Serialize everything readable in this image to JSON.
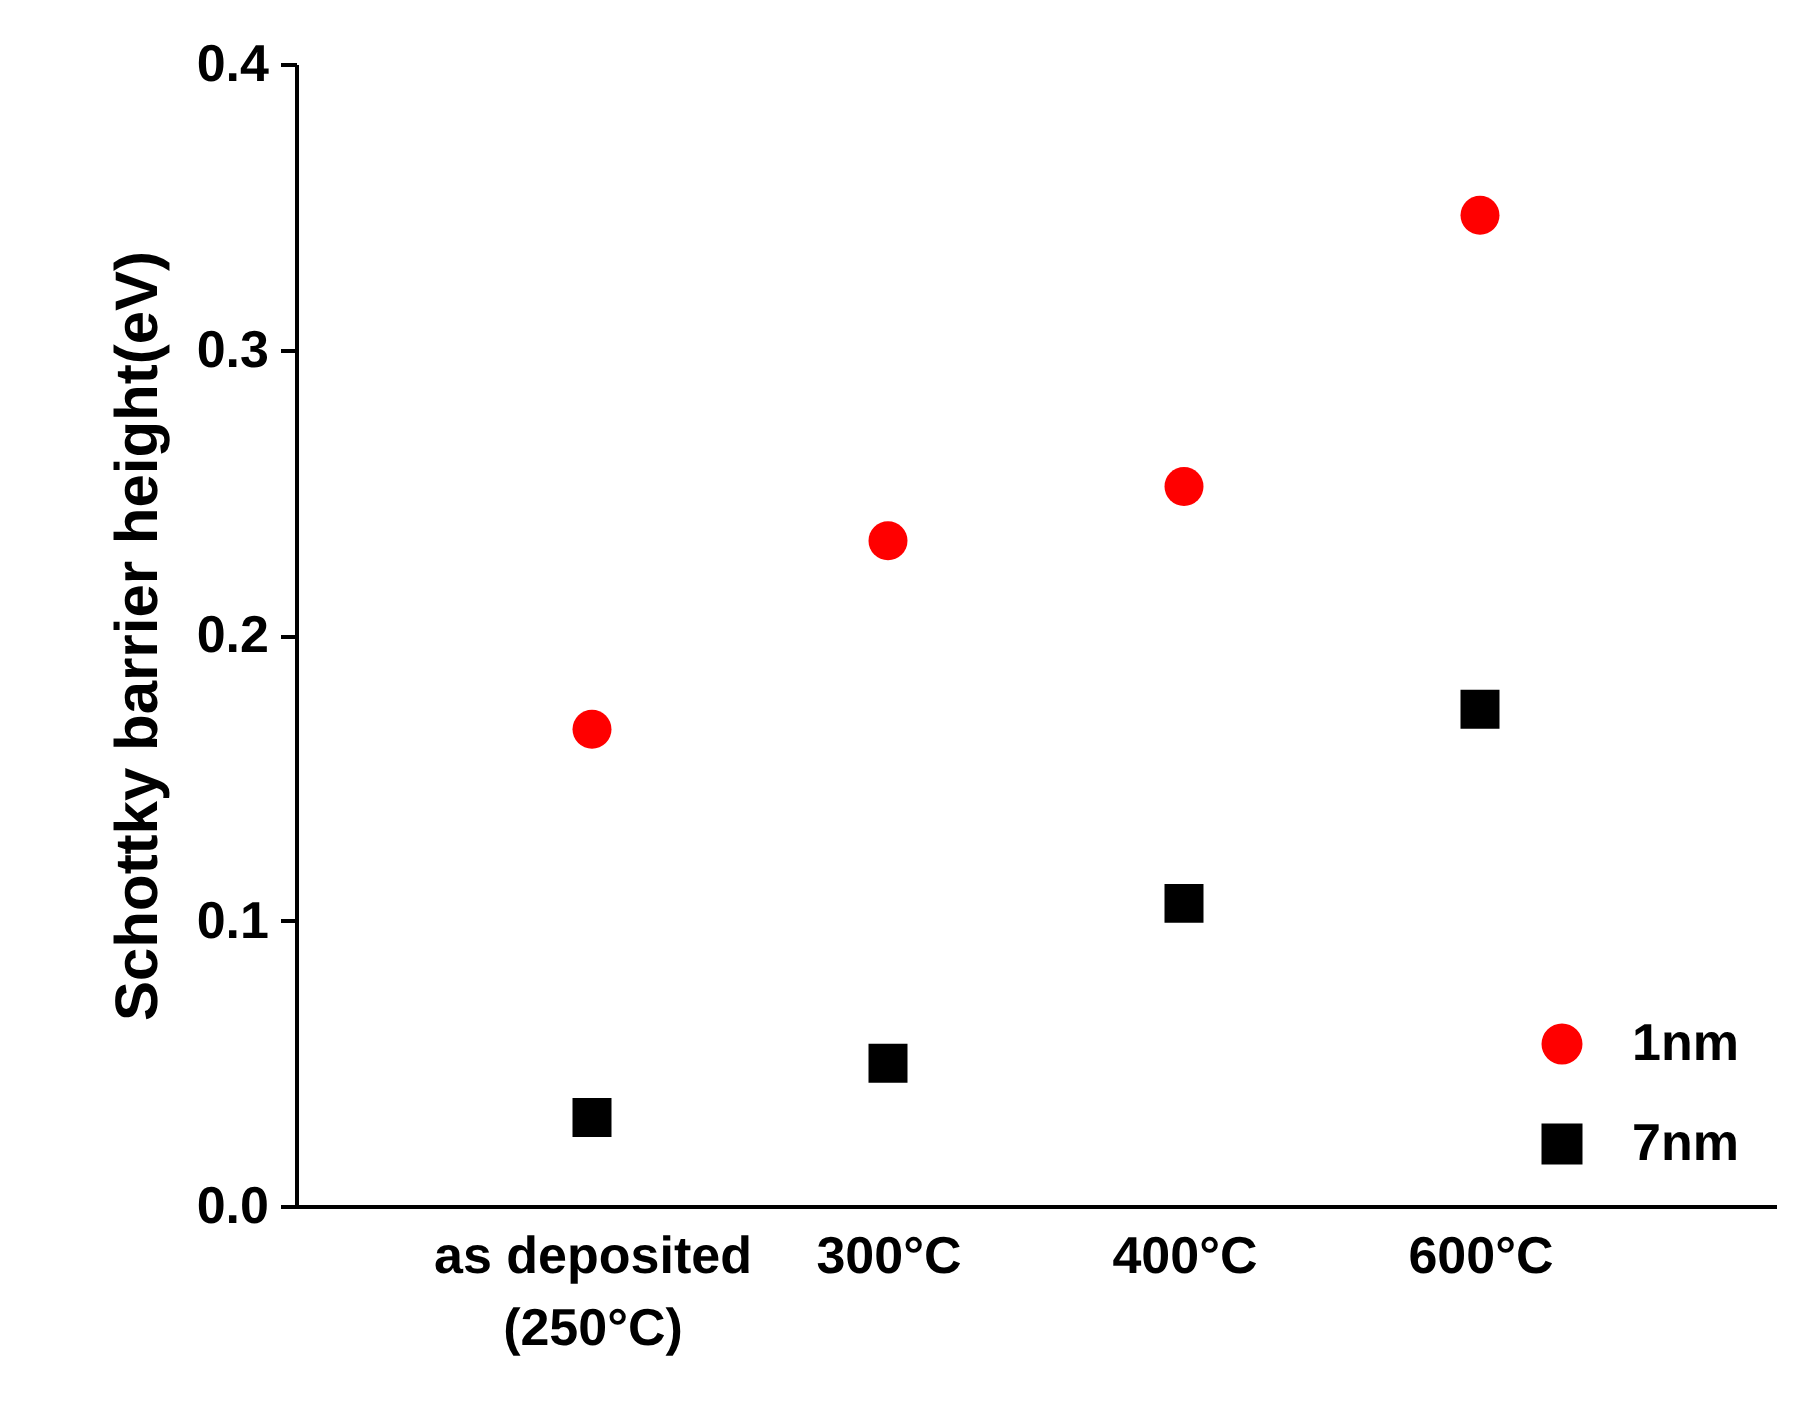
{
  "chart_data": {
    "type": "scatter",
    "ylabel": "Schottky barrier height(eV)",
    "categories": [
      "as deposited\n(250°C)",
      "300°C",
      "400°C",
      "600°C"
    ],
    "series": [
      {
        "name": "1nm",
        "color": "#ff0000",
        "marker": "circle",
        "values": [
          0.167,
          0.233,
          0.252,
          0.347
        ]
      },
      {
        "name": "7nm",
        "color": "#000000",
        "marker": "square",
        "values": [
          0.031,
          0.05,
          0.106,
          0.174
        ]
      }
    ],
    "ylim": [
      0,
      0.4
    ],
    "yticks": [
      {
        "value": 0,
        "label": "0.0"
      },
      0.1,
      0.2,
      0.3,
      0.4
    ],
    "grid": false,
    "legend": "bottom right"
  }
}
